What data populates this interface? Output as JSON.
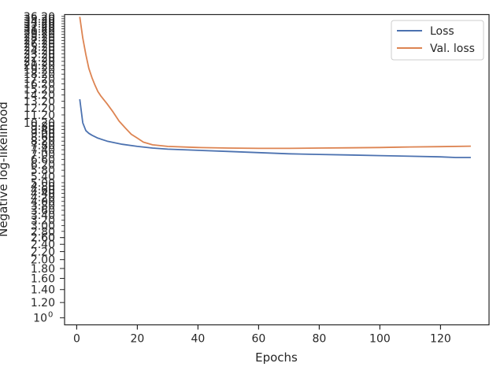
{
  "chart_data": {
    "type": "line",
    "title": "",
    "xlabel": "Epochs",
    "ylabel": "Negative log-likelihood",
    "xlim": [
      -4,
      136
    ],
    "ylim": [
      0.92,
      37
    ],
    "yscale": "log",
    "x_ticks": [
      0,
      20,
      40,
      60,
      80,
      100,
      120
    ],
    "y_ticks_visible": [
      {
        "value": 1.0,
        "label": "10",
        "exp": "0"
      },
      {
        "value": 1.2,
        "label": "1.20"
      },
      {
        "value": 1.4,
        "label": "1.40"
      },
      {
        "value": 1.6,
        "label": "1.60"
      },
      {
        "value": 1.8,
        "label": "1.80"
      },
      {
        "value": 2.0,
        "label": "2.00"
      },
      {
        "value": 2.2,
        "label": "2.20"
      },
      {
        "value": 2.4,
        "label": "2.40"
      },
      {
        "value": 2.6,
        "label": "2.60"
      }
    ],
    "y_ticks_dense_minor": true,
    "grid": false,
    "legend_position": "top-right",
    "series": [
      {
        "name": "Loss",
        "color": "#4c72b0",
        "points": [
          [
            1,
            13.5
          ],
          [
            2,
            10.2
          ],
          [
            3,
            9.3
          ],
          [
            4,
            9.0
          ],
          [
            5,
            8.8
          ],
          [
            7,
            8.5
          ],
          [
            10,
            8.2
          ],
          [
            15,
            7.9
          ],
          [
            20,
            7.7
          ],
          [
            25,
            7.55
          ],
          [
            30,
            7.45
          ],
          [
            40,
            7.35
          ],
          [
            50,
            7.25
          ],
          [
            60,
            7.15
          ],
          [
            70,
            7.05
          ],
          [
            80,
            7.0
          ],
          [
            90,
            6.95
          ],
          [
            100,
            6.9
          ],
          [
            110,
            6.85
          ],
          [
            120,
            6.8
          ],
          [
            125,
            6.75
          ],
          [
            130,
            6.75
          ]
        ]
      },
      {
        "name": "Val. loss",
        "color": "#dd8452",
        "points": [
          [
            1,
            36
          ],
          [
            2,
            28
          ],
          [
            3,
            23
          ],
          [
            4,
            19.5
          ],
          [
            5,
            17.5
          ],
          [
            6,
            16
          ],
          [
            7,
            14.8
          ],
          [
            8,
            14
          ],
          [
            10,
            12.8
          ],
          [
            12,
            11.6
          ],
          [
            14,
            10.4
          ],
          [
            16,
            9.6
          ],
          [
            18,
            8.9
          ],
          [
            20,
            8.5
          ],
          [
            22,
            8.1
          ],
          [
            25,
            7.85
          ],
          [
            30,
            7.7
          ],
          [
            40,
            7.6
          ],
          [
            50,
            7.55
          ],
          [
            60,
            7.52
          ],
          [
            70,
            7.52
          ],
          [
            80,
            7.55
          ],
          [
            90,
            7.57
          ],
          [
            100,
            7.6
          ],
          [
            110,
            7.65
          ],
          [
            120,
            7.68
          ],
          [
            130,
            7.72
          ]
        ]
      }
    ]
  }
}
